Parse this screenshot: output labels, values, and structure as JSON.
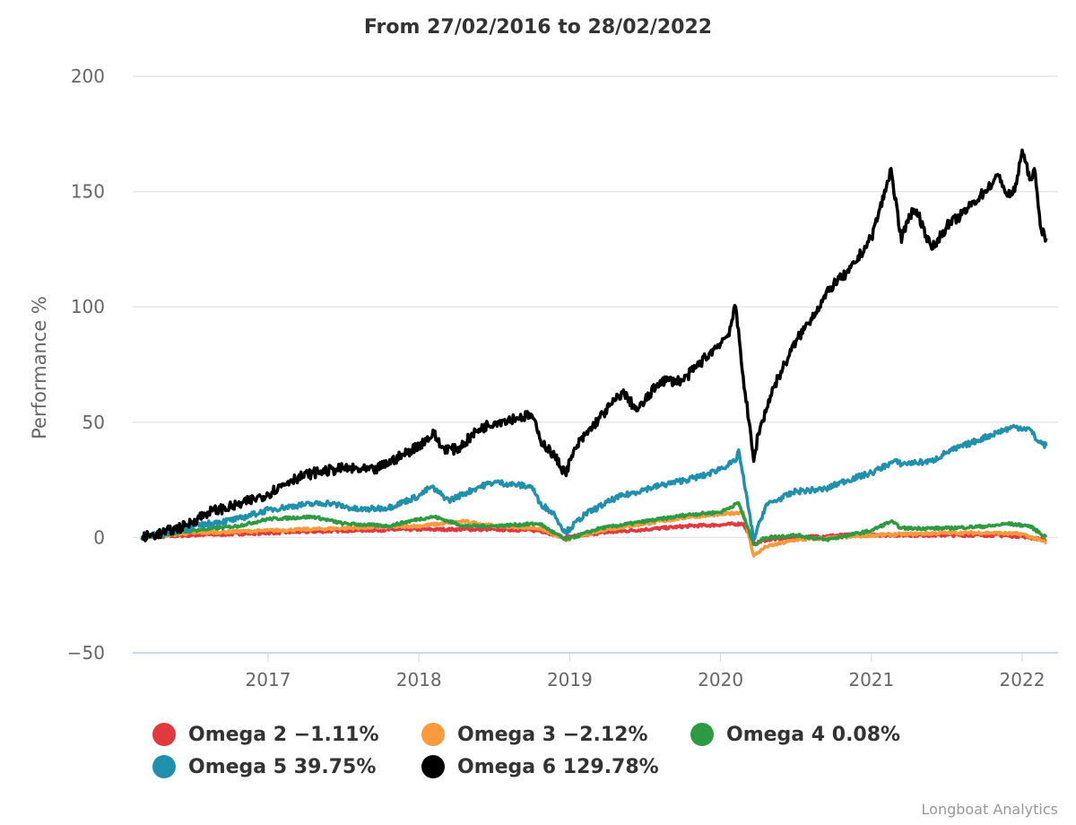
{
  "chart_data": {
    "type": "line",
    "title": "From 27/02/2016 to 28/02/2022",
    "xlabel": "",
    "ylabel": "Performance %",
    "ylim": [
      -50,
      200
    ],
    "xlim": [
      2016.0,
      2022.25
    ],
    "yticks": [
      "200",
      "150",
      "100",
      "50",
      "0",
      "−50"
    ],
    "ytick_values": [
      200,
      150,
      100,
      50,
      0,
      -50
    ],
    "xticks": [
      "2017",
      "2018",
      "2019",
      "2020",
      "2021",
      "2022"
    ],
    "xtick_values": [
      2017,
      2018,
      2019,
      2020,
      2021,
      2022
    ],
    "grid": true,
    "legend_position": "bottom",
    "series": [
      {
        "name": "Omega 2",
        "legend": "Omega 2 −1.11%",
        "color": "#e0393e",
        "x": [
          2016.16,
          2016.5,
          2017.0,
          2017.5,
          2018.0,
          2018.5,
          2018.8,
          2018.97,
          2019.2,
          2019.5,
          2019.8,
          2020.0,
          2020.15,
          2020.22,
          2020.3,
          2020.5,
          2020.8,
          2021.0,
          2021.5,
          2021.8,
          2022.0,
          2022.16
        ],
        "y": [
          0,
          1,
          2,
          3,
          3.5,
          3.5,
          3,
          0,
          2,
          3.5,
          5,
          5.5,
          6,
          -3,
          -1,
          0,
          1,
          1,
          1,
          1,
          0.5,
          -1.11
        ]
      },
      {
        "name": "Omega 3",
        "legend": "Omega 3 −2.12%",
        "color": "#f99a3c",
        "x": [
          2016.16,
          2016.5,
          2017.0,
          2017.5,
          2018.0,
          2018.3,
          2018.5,
          2018.8,
          2018.97,
          2019.2,
          2019.5,
          2019.8,
          2020.0,
          2020.15,
          2020.22,
          2020.3,
          2020.5,
          2020.8,
          2021.0,
          2021.5,
          2021.8,
          2022.0,
          2022.16
        ],
        "y": [
          0,
          2,
          3,
          4,
          5,
          7,
          5,
          4,
          -1,
          3,
          6,
          9,
          10,
          11,
          -8,
          -4,
          -1,
          0,
          1,
          2,
          2,
          1.5,
          -2.12
        ]
      },
      {
        "name": "Omega 4",
        "legend": "Omega 4 0.08%",
        "color": "#2e9b42",
        "x": [
          2016.16,
          2016.5,
          2016.8,
          2017.0,
          2017.3,
          2017.5,
          2017.8,
          2018.0,
          2018.1,
          2018.3,
          2018.5,
          2018.8,
          2018.97,
          2019.2,
          2019.5,
          2019.8,
          2020.0,
          2020.12,
          2020.22,
          2020.3,
          2020.5,
          2020.7,
          2021.0,
          2021.13,
          2021.2,
          2021.5,
          2021.8,
          2021.9,
          2022.05,
          2022.16
        ],
        "y": [
          0,
          3,
          5,
          8,
          9,
          6,
          5,
          8,
          9,
          5,
          5,
          6,
          -1,
          4,
          7,
          10,
          11,
          15,
          -3,
          0,
          1,
          -1,
          3,
          7,
          4,
          4,
          5,
          6,
          5,
          0.08
        ]
      },
      {
        "name": "Omega 5",
        "legend": "Omega 5 39.75%",
        "color": "#2090ad",
        "x": [
          2016.16,
          2016.4,
          2016.6,
          2016.8,
          2017.0,
          2017.2,
          2017.4,
          2017.6,
          2017.8,
          2018.0,
          2018.08,
          2018.2,
          2018.4,
          2018.5,
          2018.75,
          2018.8,
          2018.9,
          2018.97,
          2019.1,
          2019.3,
          2019.5,
          2019.7,
          2019.9,
          2020.1,
          2020.12,
          2020.22,
          2020.3,
          2020.5,
          2020.7,
          2020.8,
          2021.0,
          2021.15,
          2021.2,
          2021.4,
          2021.5,
          2021.7,
          2021.85,
          2021.95,
          2022.05,
          2022.1,
          2022.16
        ],
        "y": [
          0,
          3,
          6,
          8,
          12,
          14,
          15,
          12,
          13,
          18,
          22,
          16,
          22,
          24,
          22,
          15,
          10,
          2,
          10,
          17,
          21,
          24,
          27,
          33,
          38,
          -1,
          14,
          20,
          21,
          24,
          28,
          33,
          32,
          33,
          37,
          42,
          46,
          48,
          47,
          42,
          39.75
        ]
      },
      {
        "name": "Omega 6",
        "legend": "Omega 6 129.78%",
        "color": "#000000",
        "x": [
          2016.16,
          2016.3,
          2016.45,
          2016.6,
          2016.8,
          2017.0,
          2017.15,
          2017.3,
          2017.5,
          2017.7,
          2017.9,
          2018.0,
          2018.1,
          2018.15,
          2018.25,
          2018.4,
          2018.5,
          2018.65,
          2018.75,
          2018.8,
          2018.9,
          2018.97,
          2019.05,
          2019.2,
          2019.35,
          2019.45,
          2019.6,
          2019.75,
          2019.9,
          2020.05,
          2020.1,
          2020.15,
          2020.22,
          2020.25,
          2020.35,
          2020.5,
          2020.6,
          2020.75,
          2020.85,
          2021.0,
          2021.1,
          2021.13,
          2021.2,
          2021.25,
          2021.3,
          2021.4,
          2021.5,
          2021.6,
          2021.75,
          2021.85,
          2021.9,
          2021.95,
          2022.0,
          2022.05,
          2022.08,
          2022.12,
          2022.16
        ],
        "y": [
          0,
          2,
          5,
          11,
          14,
          19,
          25,
          28,
          30,
          29,
          36,
          40,
          45,
          39,
          38,
          47,
          50,
          52,
          53,
          43,
          35,
          28,
          40,
          52,
          63,
          55,
          68,
          68,
          78,
          88,
          100,
          70,
          33,
          45,
          65,
          85,
          95,
          110,
          115,
          130,
          152,
          160,
          128,
          140,
          142,
          125,
          135,
          140,
          150,
          157,
          148,
          150,
          168,
          155,
          160,
          135,
          129.78
        ]
      }
    ]
  },
  "legend": {
    "items": [
      {
        "label": "Omega 2 −1.11%",
        "color": "#e0393e"
      },
      {
        "label": "Omega 3 −2.12%",
        "color": "#f99a3c"
      },
      {
        "label": "Omega 4 0.08%",
        "color": "#2e9b42"
      },
      {
        "label": "Omega 5 39.75%",
        "color": "#2090ad"
      },
      {
        "label": "Omega 6 129.78%",
        "color": "#000000"
      }
    ]
  },
  "credit": "Longboat Analytics"
}
